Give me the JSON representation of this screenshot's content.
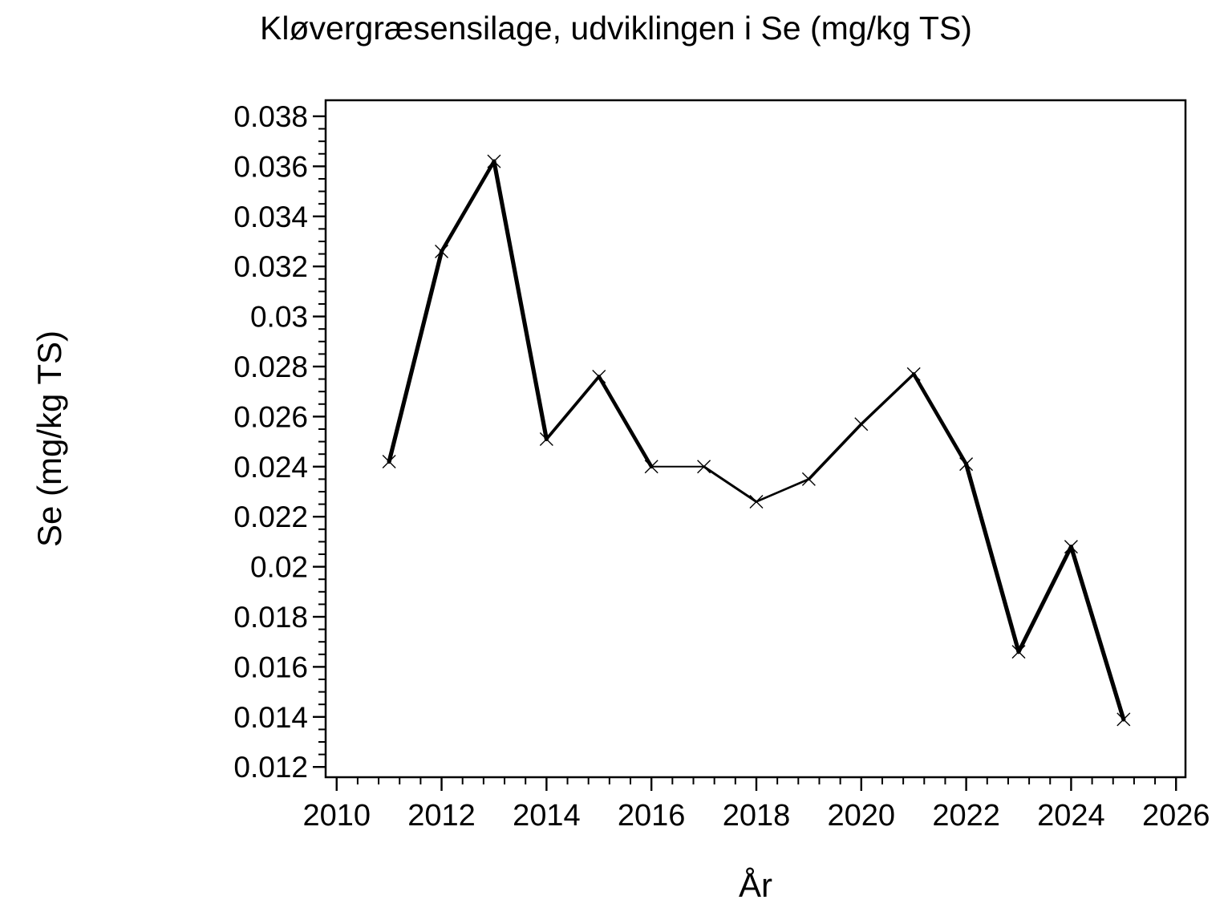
{
  "figure": {
    "background": "#ffffff",
    "foreground": "#000000"
  },
  "chart_data": {
    "type": "line",
    "title": "Kløvergræsensilage, udviklingen i Se (mg/kg TS)",
    "xlabel": "År",
    "ylabel": "Se (mg/kg TS)",
    "x": [
      2011,
      2012,
      2013,
      2014,
      2015,
      2016,
      2017,
      2018,
      2019,
      2020,
      2021,
      2022,
      2023,
      2024,
      2025
    ],
    "values": [
      0.0242,
      0.0326,
      0.0362,
      0.0251,
      0.0276,
      0.024,
      0.024,
      0.0226,
      0.0235,
      0.0257,
      0.0277,
      0.0241,
      0.0166,
      0.0208,
      0.0139
    ],
    "marker": "x",
    "line_color": "#000000",
    "background": "#ffffff",
    "xlim": [
      2009.79,
      2026.18
    ],
    "ylim": [
      0.01159,
      0.03864
    ],
    "x_major_ticks": [
      2010,
      2012,
      2014,
      2016,
      2018,
      2020,
      2022,
      2024,
      2026
    ],
    "x_tick_labels": [
      "2010",
      "2012",
      "2014",
      "2016",
      "2018",
      "2020",
      "2022",
      "2024",
      "2026"
    ],
    "x_minor_tick_step": 0.4,
    "y_major_ticks": [
      0.038,
      0.036,
      0.034,
      0.032,
      0.03,
      0.028,
      0.026,
      0.024,
      0.022,
      0.02,
      0.018,
      0.016,
      0.014,
      0.012
    ],
    "y_tick_labels": [
      "0.038",
      "0.036",
      "0.034",
      "0.032",
      "0.03",
      "0.028",
      "0.026",
      "0.024",
      "0.022",
      "0.02",
      "0.018",
      "0.016",
      "0.014",
      "0.012"
    ],
    "y_minor_tick_step": 0.0005,
    "grid": false,
    "legend": "none"
  }
}
